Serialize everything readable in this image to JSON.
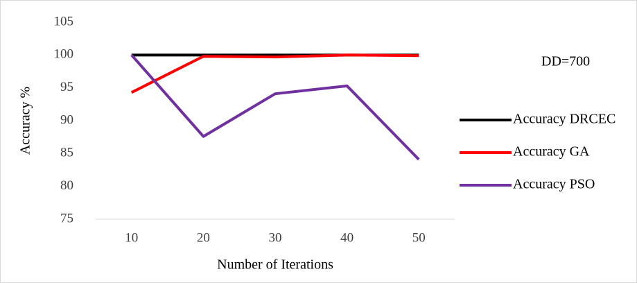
{
  "chart_data": {
    "type": "line",
    "x_label": "Number of Iterations",
    "y_label": "Accuracy %",
    "annotation": "DD=700",
    "categories": [
      "10",
      "20",
      "30",
      "40",
      "50"
    ],
    "series": [
      {
        "name": "Accuracy DRCEC",
        "color": "#000000",
        "values": [
          100,
          100,
          100,
          100,
          100
        ]
      },
      {
        "name": "Accuracy GA",
        "color": "#ff0000",
        "values": [
          94.3,
          99.8,
          99.7,
          100,
          99.9
        ]
      },
      {
        "name": "Accuracy PSO",
        "color": "#7030a0",
        "values": [
          100,
          87.6,
          94.1,
          95.3,
          84.1
        ]
      }
    ],
    "ylim": [
      75,
      105
    ],
    "yticks": [
      75,
      80,
      85,
      90,
      95,
      100,
      105
    ],
    "grid": false,
    "legend": "right"
  }
}
